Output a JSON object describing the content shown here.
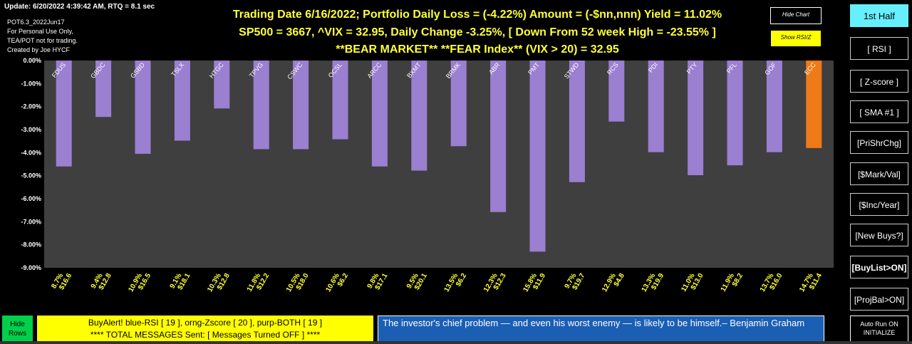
{
  "status": {
    "update": "Update: 6/20/2022 4:39:42 AM, RTQ = 8.1 sec",
    "version": "POT6.3_2022Jun17",
    "note1": "For Personal Use Only,",
    "note2": "TEA/POT not for trading.",
    "credit": "Created by Joe HYCF"
  },
  "header": {
    "line1": "Trading Date 6/16/2022;    Portfolio Daily Loss = (-4.22%)    Amount = (-$nn,nnn)    Yield = 11.02%",
    "line2": "SP500 = 3667,   ^VIX = 32.95,   Daily Change -3.25%,   [ Down From 52 week High = -23.55% ]",
    "line3": "**BEAR MARKET**   **FEAR Index** (VIX > 20) = 32.95"
  },
  "chart_controls": {
    "hide_chart": "Hide Chart",
    "show_rsi": "Show RSI/Z"
  },
  "sidebar": {
    "first_half": "1st Half",
    "rsi": "[ RSI ]",
    "zscore": "[ Z-score ]",
    "sma": "[ SMA #1 ]",
    "prishrchg": "[PriShrChg]",
    "mark_val": "[$Mark/Val]",
    "inc_year": "[$Inc/Year]",
    "new_buys": "[New Buys?]",
    "buylist_on": "[BuyList>ON]",
    "projbal_on": "[ProjBal>ON]"
  },
  "colors": {
    "bar_default": "#9b7fd0",
    "bar_highlight": "#ef7a18",
    "plot_bg": "#3f3f3f",
    "label_text": "#ffff3c"
  },
  "chart_data": {
    "type": "bar",
    "categories": [
      "FDUS",
      "GBDC",
      "GSBD",
      "TSLX",
      "HTGC",
      "TPVG",
      "CSWC",
      "OCSL",
      "ARCC",
      "BXMT",
      "BRMK",
      "ABR",
      "PMT",
      "STWD",
      "RCS",
      "PDI",
      "PTY",
      "PFL",
      "GOF",
      "ECC"
    ],
    "values": [
      -4.6,
      -2.45,
      -4.05,
      -3.48,
      -2.08,
      -3.85,
      -3.85,
      -3.42,
      -4.6,
      -4.78,
      -3.72,
      -6.58,
      -8.3,
      -5.28,
      -2.65,
      -3.98,
      -4.98,
      -4.55,
      -3.98,
      -3.8
    ],
    "yields": [
      "8.7%",
      "9.4%",
      "10.9%",
      "9.1%",
      "10.3%",
      "11.8%",
      "10.5%",
      "10.6%",
      "9.8%",
      "9.5%",
      "13.5%",
      "12.3%",
      "15.8%",
      "9.7%",
      "12.9%",
      "13.3%",
      "11.0%",
      "11.9%",
      "13.7%",
      "14.7%"
    ],
    "prices": [
      "$16.6",
      "$12.8",
      "$16.5",
      "$18.1",
      "$12.8",
      "$12.2",
      "$18.0",
      "$6.2",
      "$17.1",
      "$20.1",
      "$6.2",
      "$12.3",
      "$11.9",
      "$19.7",
      "$4.8",
      "$19.9",
      "$13.0",
      "$8.2",
      "$16.0",
      "$11.4"
    ],
    "highlight": [
      "ECC"
    ],
    "ylim": [
      -9,
      0
    ],
    "yticks": [
      "0.00%",
      "-1.00%",
      "-2.00%",
      "-3.00%",
      "-4.00%",
      "-5.00%",
      "-6.00%",
      "-7.00%",
      "-8.00%",
      "-9.00%"
    ],
    "grid": false,
    "legend": "none"
  },
  "footer": {
    "hide_rows": "Hide Rows",
    "buyalert_line1": "BuyAlert!     blue-RSI [ 19 ],  orng-Zscore [ 20 ],  purp-BOTH [ 19 ]",
    "buyalert_line2": "**** TOTAL MESSAGES Sent: [ Messages Turned OFF ] ****",
    "quote": "The investor's chief problem — and even his worst enemy — is likely to be himself.– Benjamin Graham",
    "autorun_line1": "Auto Run ON",
    "autorun_line2": "INITIALIZE"
  }
}
